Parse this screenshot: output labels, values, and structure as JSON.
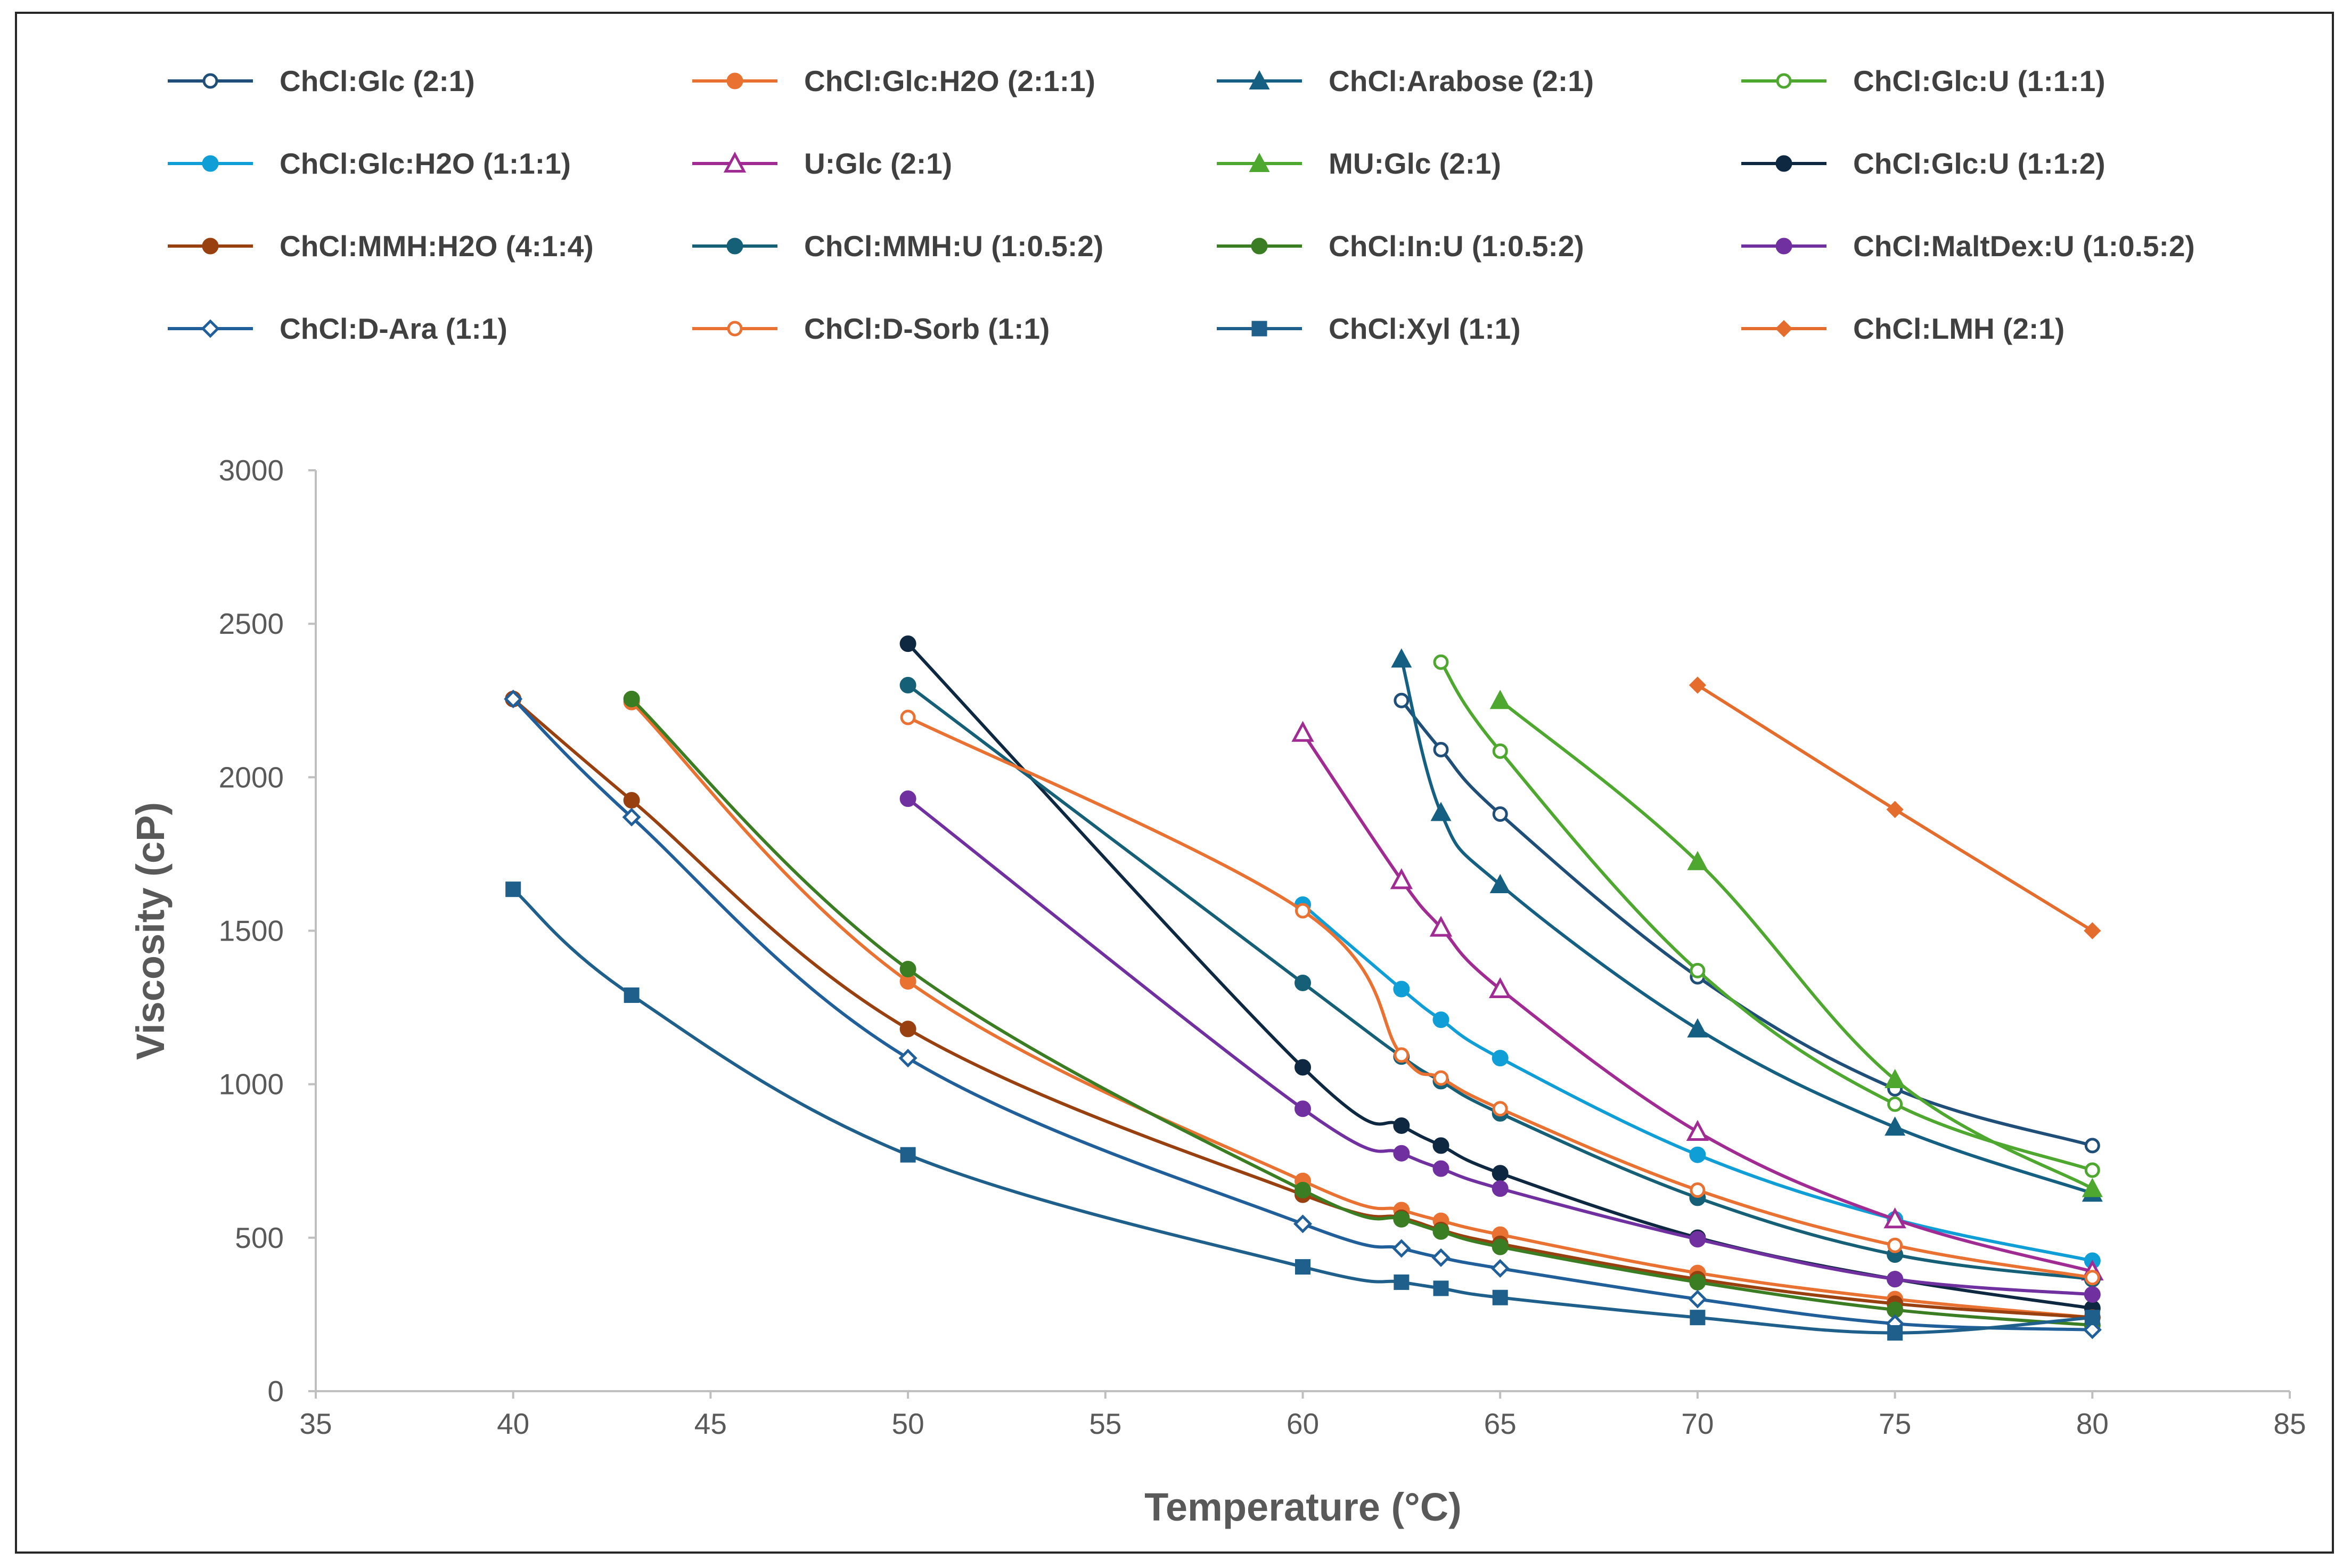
{
  "chart_data": {
    "type": "line",
    "title": "",
    "xlabel": "Temperature (°C)",
    "ylabel": "Viscosity (cP)",
    "xlim": [
      35,
      85
    ],
    "ylim": [
      0,
      3000
    ],
    "xticks": [
      35,
      40,
      45,
      50,
      55,
      60,
      65,
      70,
      75,
      80,
      85
    ],
    "yticks": [
      0,
      500,
      1000,
      1500,
      2000,
      2500,
      3000
    ],
    "grid": false,
    "legend": "top",
    "series": [
      {
        "name": "ChCl:Glc (2:1)",
        "color": "#1F4E79",
        "marker": "circle-open",
        "x": [
          62.5,
          63.5,
          65,
          70,
          75,
          80
        ],
        "y": [
          2250,
          2090,
          1880,
          1350,
          985,
          800
        ]
      },
      {
        "name": "ChCl:Glc:H2O (2:1:1)",
        "color": "#E97132",
        "marker": "circle",
        "x": [
          43,
          50,
          60,
          62.5,
          63.5,
          65,
          70,
          75,
          80
        ],
        "y": [
          2245,
          1335,
          685,
          590,
          555,
          510,
          385,
          300,
          240
        ]
      },
      {
        "name": "ChCl:Arabose (2:1)",
        "color": "#156082",
        "marker": "triangle",
        "x": [
          62.5,
          63.5,
          65,
          70,
          75,
          80
        ],
        "y": [
          2385,
          1885,
          1650,
          1180,
          860,
          645
        ]
      },
      {
        "name": "ChCl:Glc:U (1:1:1)",
        "color": "#4EA72E",
        "marker": "circle-open",
        "x": [
          63.5,
          65,
          70,
          75,
          80
        ],
        "y": [
          2375,
          2085,
          1370,
          935,
          720
        ]
      },
      {
        "name": "ChCl:Glc:H2O (1:1:1)",
        "color": "#0F9ED5",
        "marker": "circle",
        "x": [
          60,
          62.5,
          63.5,
          65,
          70,
          75,
          80
        ],
        "y": [
          1585,
          1310,
          1210,
          1085,
          770,
          560,
          425
        ]
      },
      {
        "name": "U:Glc (2:1)",
        "color": "#A02B93",
        "marker": "triangle-open",
        "x": [
          60,
          62.5,
          63.5,
          65,
          70,
          75,
          80
        ],
        "y": [
          2145,
          1665,
          1510,
          1310,
          845,
          560,
          390
        ]
      },
      {
        "name": "MU:Glc (2:1)",
        "color": "#4EA72E",
        "marker": "triangle",
        "x": [
          65,
          70,
          75,
          80
        ],
        "y": [
          2250,
          1725,
          1015,
          660
        ]
      },
      {
        "name": "ChCl:Glc:U (1:1:2)",
        "color": "#0E2841",
        "marker": "circle",
        "x": [
          50,
          60,
          62.5,
          63.5,
          65,
          70,
          75,
          80
        ],
        "y": [
          2435,
          1055,
          865,
          800,
          710,
          500,
          365,
          270
        ]
      },
      {
        "name": "ChCl:MMH:H2O (4:1:4)",
        "color": "#994010",
        "marker": "circle",
        "x": [
          40,
          43,
          50,
          60,
          62.5,
          63.5,
          65,
          70,
          75,
          80
        ],
        "y": [
          2255,
          1925,
          1180,
          640,
          565,
          525,
          480,
          365,
          285,
          240
        ]
      },
      {
        "name": "ChCl:MMH:U (1:0.5:2)",
        "color": "#155F77",
        "marker": "circle",
        "x": [
          50,
          60,
          62.5,
          63.5,
          65,
          70,
          75,
          80
        ],
        "y": [
          2300,
          1330,
          1090,
          1010,
          905,
          630,
          445,
          365
        ]
      },
      {
        "name": "ChCl:In:U (1:0.5:2)",
        "color": "#3B7D23",
        "marker": "circle",
        "x": [
          43,
          50,
          60,
          62.5,
          63.5,
          65,
          70,
          75,
          80
        ],
        "y": [
          2255,
          1375,
          655,
          560,
          520,
          470,
          355,
          265,
          215
        ]
      },
      {
        "name": "ChCl:MaltDex:U (1:0.5:2)",
        "color": "#7030A0",
        "marker": "circle",
        "x": [
          50,
          60,
          62.5,
          63.5,
          65,
          70,
          75,
          80
        ],
        "y": [
          1930,
          920,
          775,
          725,
          660,
          495,
          365,
          315
        ]
      },
      {
        "name": "ChCl:D-Ara (1:1)",
        "color": "#215F9A",
        "marker": "diamond-open",
        "x": [
          40,
          43,
          50,
          60,
          62.5,
          63.5,
          65,
          70,
          75,
          80
        ],
        "y": [
          2255,
          1870,
          1085,
          545,
          465,
          435,
          400,
          300,
          220,
          200
        ]
      },
      {
        "name": "ChCl:D-Sorb (1:1)",
        "color": "#E97132",
        "marker": "circle-open",
        "x": [
          50,
          60,
          62.5,
          63.5,
          65,
          70,
          75,
          80
        ],
        "y": [
          2195,
          1565,
          1095,
          1020,
          920,
          655,
          475,
          370
        ]
      },
      {
        "name": "ChCl:Xyl (1:1)",
        "color": "#1F5F8B",
        "marker": "square",
        "x": [
          40,
          43,
          50,
          60,
          62.5,
          63.5,
          65,
          70,
          75,
          80
        ],
        "y": [
          1635,
          1290,
          770,
          405,
          355,
          335,
          305,
          240,
          190,
          240
        ]
      },
      {
        "name": "ChCl:LMH (2:1)",
        "color": "#E46C2C",
        "marker": "diamond",
        "x": [
          70,
          75,
          80
        ],
        "y": [
          2300,
          1895,
          1500
        ]
      }
    ]
  }
}
